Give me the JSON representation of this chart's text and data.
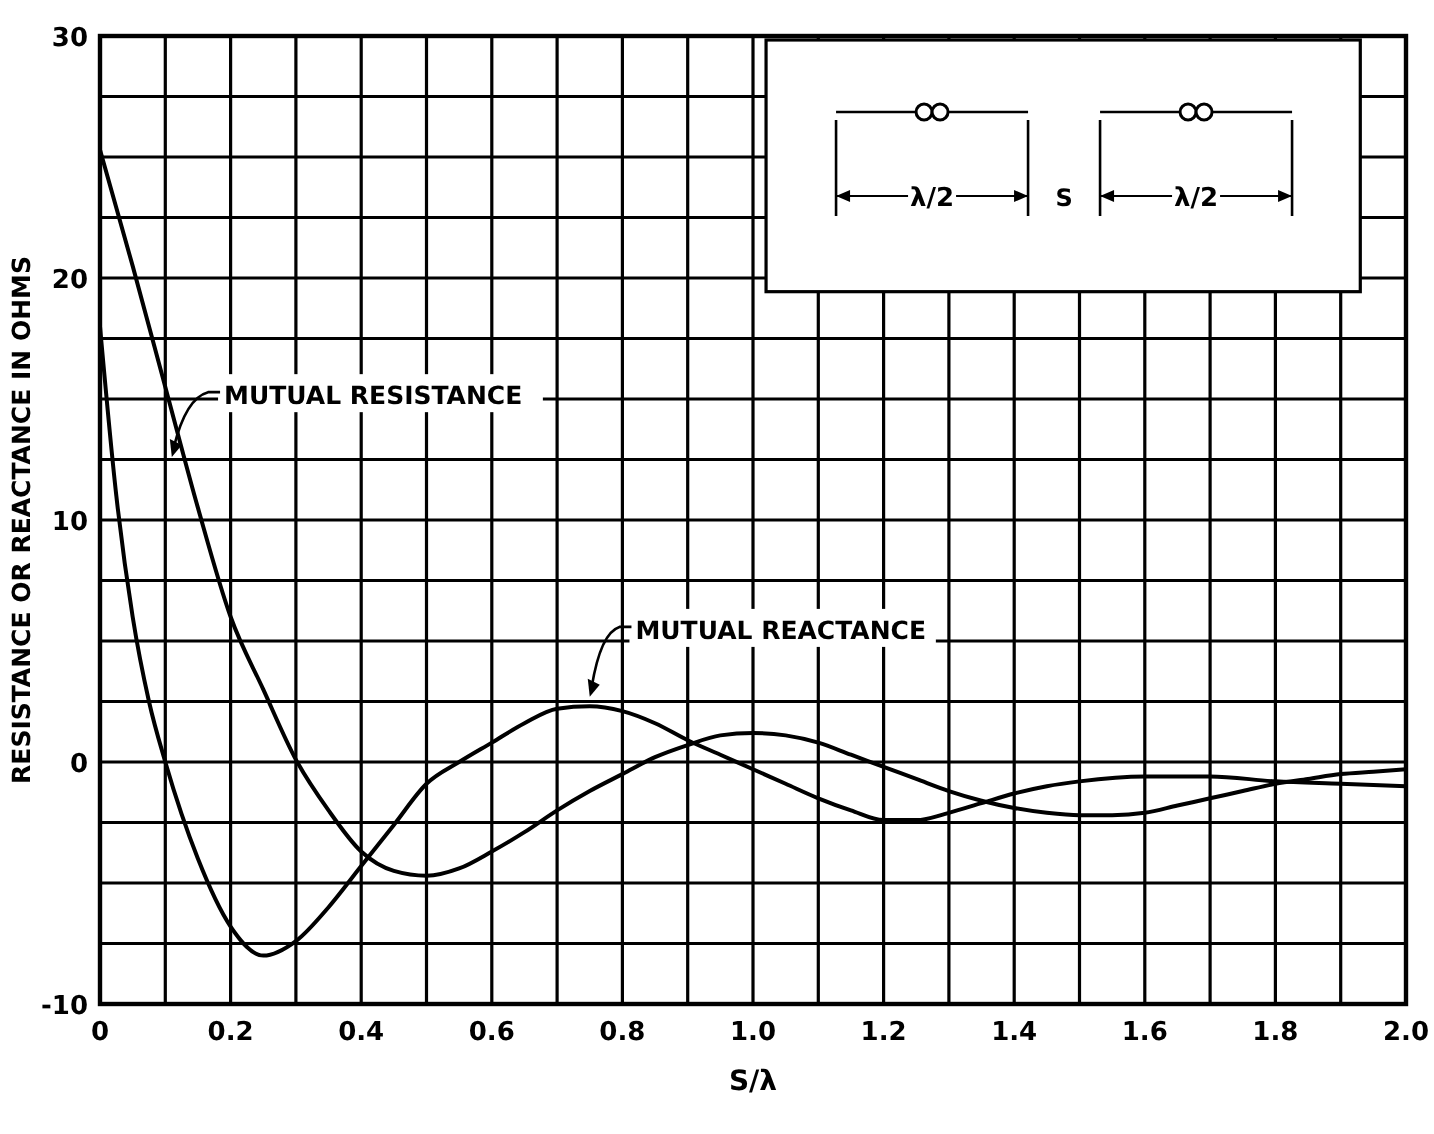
{
  "chart_data": {
    "type": "line",
    "xlabel": "S/λ",
    "ylabel": "RESISTANCE OR REACTANCE IN OHMS",
    "xlim": [
      0,
      2.0
    ],
    "ylim": [
      -10,
      30
    ],
    "xticks": [
      0,
      {
        "value": 0.1,
        "label": null
      },
      0.2,
      {
        "value": 0.3,
        "label": null
      },
      0.4,
      {
        "value": 0.5,
        "label": null
      },
      0.6,
      {
        "value": 0.7,
        "label": null
      },
      0.8,
      {
        "value": 0.9,
        "label": null
      },
      {
        "value": 1.0,
        "label": "1.0"
      },
      {
        "value": 1.1,
        "label": null
      },
      1.2,
      {
        "value": 1.3,
        "label": null
      },
      1.4,
      {
        "value": 1.5,
        "label": null
      },
      1.6,
      {
        "value": 1.7,
        "label": null
      },
      1.8,
      {
        "value": 1.9,
        "label": null
      },
      {
        "value": 2.0,
        "label": "2.0"
      }
    ],
    "yticks": [
      -10,
      {
        "value": -7.5,
        "label": null
      },
      {
        "value": -5,
        "label": null
      },
      {
        "value": -2.5,
        "label": null
      },
      0,
      {
        "value": 2.5,
        "label": null
      },
      {
        "value": 5,
        "label": null
      },
      {
        "value": 7.5,
        "label": null
      },
      10,
      {
        "value": 12.5,
        "label": null
      },
      {
        "value": 15,
        "label": null
      },
      {
        "value": 17.5,
        "label": null
      },
      20,
      {
        "value": 22.5,
        "label": null
      },
      {
        "value": 25,
        "label": null
      },
      {
        "value": 27.5,
        "label": null
      },
      30
    ],
    "grid": true,
    "marker": "none",
    "line_style": "solid",
    "series": [
      {
        "name": "MUTUAL RESISTANCE",
        "color": "#000000",
        "x": [
          0,
          0.05,
          0.1,
          0.15,
          0.2,
          0.25,
          0.3,
          0.35,
          0.4,
          0.45,
          0.5,
          0.55,
          0.6,
          0.65,
          0.7,
          0.75,
          0.8,
          0.85,
          0.9,
          0.95,
          1.0,
          1.05,
          1.1,
          1.15,
          1.2,
          1.25,
          1.3,
          1.35,
          1.4,
          1.45,
          1.5,
          1.55,
          1.6,
          1.65,
          1.7,
          1.75,
          1.8,
          1.85,
          1.9,
          1.95,
          2.0
        ],
        "values": [
          25.3,
          20.5,
          15.5,
          10.5,
          6,
          3,
          0.1,
          -2,
          -3.7,
          -4.5,
          -4.7,
          -4.4,
          -3.7,
          -2.9,
          -2,
          -1.2,
          -0.5,
          0.2,
          0.7,
          1.1,
          1.2,
          1.1,
          0.8,
          0.3,
          -0.2,
          -0.7,
          -1.2,
          -1.6,
          -1.9,
          -2.1,
          -2.2,
          -2.2,
          -2.1,
          -1.8,
          -1.5,
          -1.2,
          -0.9,
          -0.7,
          -0.5,
          -0.4,
          -0.3
        ]
      },
      {
        "name": "MUTUAL REACTANCE",
        "color": "#000000",
        "x": [
          0,
          0.025,
          0.05,
          0.075,
          0.1,
          0.15,
          0.2,
          0.25,
          0.3,
          0.35,
          0.4,
          0.45,
          0.5,
          0.55,
          0.6,
          0.65,
          0.7,
          0.75,
          0.8,
          0.85,
          0.9,
          0.95,
          1.0,
          1.05,
          1.1,
          1.15,
          1.2,
          1.25,
          1.3,
          1.35,
          1.4,
          1.45,
          1.5,
          1.6,
          1.7,
          1.8,
          1.9,
          2.0
        ],
        "values": [
          18,
          11,
          6,
          2.5,
          0,
          -4,
          -6.8,
          -8,
          -7.4,
          -6,
          -4.3,
          -2.6,
          -0.9,
          0,
          0.8,
          1.6,
          2.2,
          2.3,
          2.1,
          1.6,
          0.9,
          0.3,
          -0.3,
          -0.9,
          -1.5,
          -2,
          -2.4,
          -2.4,
          -2.1,
          -1.7,
          -1.3,
          -1,
          -0.8,
          -0.6,
          -0.6,
          -0.8,
          -0.9,
          -1.0
        ]
      }
    ],
    "annotations": [
      "λ/2",
      "S",
      "λ/2"
    ]
  }
}
